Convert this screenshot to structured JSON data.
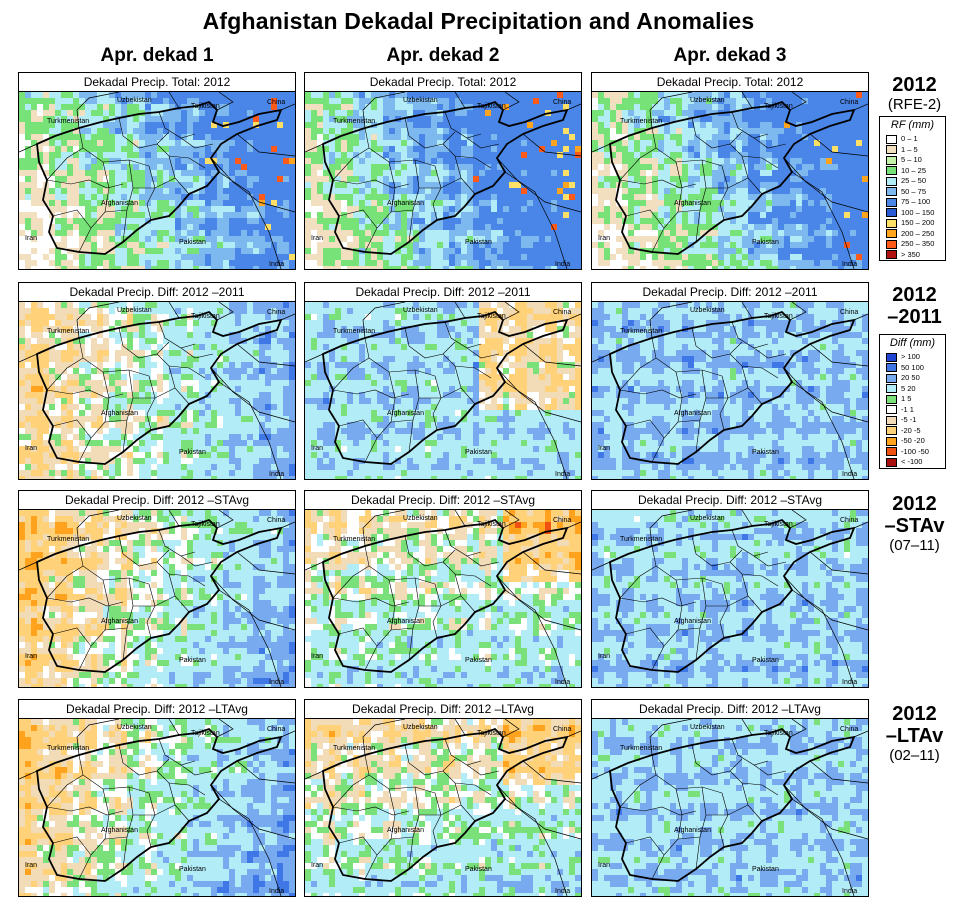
{
  "title": "Afghanistan Dekadal Precipitation and Anomalies",
  "columns": [
    "Apr. dekad 1",
    "Apr. dekad 2",
    "Apr. dekad 3"
  ],
  "rows": [
    {
      "label1": "2012",
      "label2": "(RFE-2)",
      "panel_title": "Dekadal Precip. Total: 2012",
      "palette": "rf"
    },
    {
      "label1": "2012",
      "label2": "–2011",
      "panel_title": "Dekadal Precip. Diff:  2012 –2011",
      "palette": "diff"
    },
    {
      "label1": "2012",
      "label2": "–STAv",
      "label3": "(07–11)",
      "panel_title": "Dekadal Precip. Diff:  2012 –STAvg",
      "palette": "diff"
    },
    {
      "label1": "2012",
      "label2": "–LTAv",
      "label3": "(02–11)",
      "panel_title": "Dekadal Precip. Diff:  2012 –LTAvg",
      "palette": "diff"
    }
  ],
  "map_labels": {
    "uzbekistan": "Uzbekistan",
    "tajikistan": "Tajikistan",
    "china": "China",
    "turkmenistan": "Turkmenistan",
    "afghanistan": "Afghanistan",
    "iran": "Iran",
    "pakistan": "Pakistan",
    "india": "India"
  },
  "legend_rf": {
    "title": "RF (mm)",
    "items": [
      {
        "label": "0 – 1",
        "color": "#ffffff"
      },
      {
        "label": "1 – 5",
        "color": "#f2dfc0"
      },
      {
        "label": "5 – 10",
        "color": "#c3f2a8"
      },
      {
        "label": "10 – 25",
        "color": "#77e277"
      },
      {
        "label": "25 – 50",
        "color": "#b2ecf7"
      },
      {
        "label": "50 – 75",
        "color": "#7db8ef"
      },
      {
        "label": "75 – 100",
        "color": "#4a86e8"
      },
      {
        "label": "100 – 150",
        "color": "#2a5bd7"
      },
      {
        "label": "150 – 200",
        "color": "#ffe066"
      },
      {
        "label": "200 – 250",
        "color": "#ffa41f"
      },
      {
        "label": "250 – 350",
        "color": "#ff5a1a"
      },
      {
        "label": "> 350",
        "color": "#b01010"
      }
    ]
  },
  "legend_diff": {
    "title": "Diff (mm)",
    "items": [
      {
        "label": "> 100",
        "color": "#1f44d4"
      },
      {
        "label": "50  100",
        "color": "#3f77e6"
      },
      {
        "label": "20  50",
        "color": "#78aaf0"
      },
      {
        "label": "5  20",
        "color": "#b2ecf7"
      },
      {
        "label": "1   5",
        "color": "#7ae07a"
      },
      {
        "label": "-1   1",
        "color": "#ffffff"
      },
      {
        "label": "-5  -1",
        "color": "#f2dcb8"
      },
      {
        "label": "-20  -5",
        "color": "#ffd27a"
      },
      {
        "label": "-50  -20",
        "color": "#ffa31f"
      },
      {
        "label": "-100  -50",
        "color": "#f05010"
      },
      {
        "label": "< -100",
        "color": "#a80f0f"
      }
    ]
  }
}
